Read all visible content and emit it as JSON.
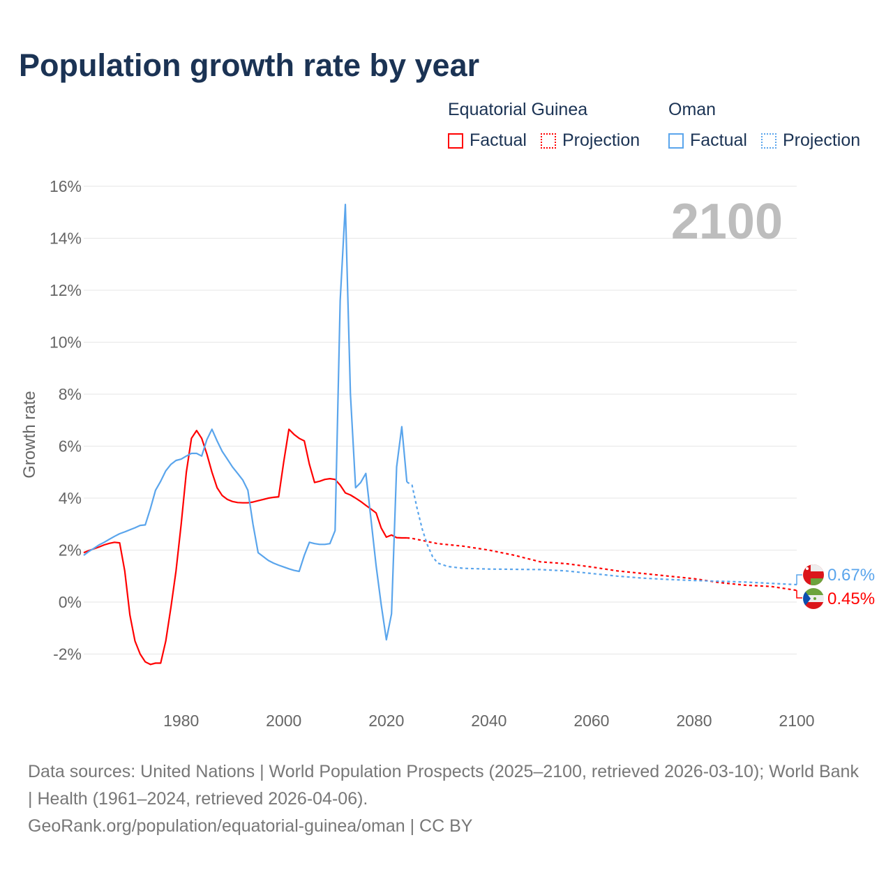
{
  "title": "Population growth rate by year",
  "legend": {
    "groups": [
      {
        "name": "Equatorial Guinea",
        "factual": "Factual",
        "projection": "Projection",
        "color": "#ff0000"
      },
      {
        "name": "Oman",
        "factual": "Factual",
        "projection": "Projection",
        "color": "#5aa5ec"
      }
    ]
  },
  "year_watermark": "2100",
  "end_labels": {
    "oman": "0.67%",
    "equatorial_guinea": "0.45%"
  },
  "footer": {
    "line1": "Data sources: United Nations | World Population Prospects (2025–2100, retrieved 2026-03-10); World Bank | Health (1961–2024, retrieved 2026-04-06).",
    "line2": "GeoRank.org/population/equatorial-guinea/oman | CC BY"
  },
  "chart_data": {
    "type": "line",
    "title": "Population growth rate by year",
    "xlabel": "",
    "ylabel": "Growth rate",
    "xlim": [
      1961,
      2100
    ],
    "ylim": [
      -3.3,
      16
    ],
    "xticks": [
      1980,
      2000,
      2020,
      2040,
      2060,
      2080,
      2100
    ],
    "yticks": [
      -2,
      0,
      2,
      4,
      6,
      8,
      10,
      12,
      14,
      16
    ],
    "ytick_labels": [
      "-2%",
      "0%",
      "2%",
      "4%",
      "6%",
      "8%",
      "10%",
      "12%",
      "14%",
      "16%"
    ],
    "grid": true,
    "legend_position": "top-right",
    "series": [
      {
        "name": "Equatorial Guinea — Factual",
        "color": "#ff0000",
        "style": "solid",
        "x": [
          1961,
          1962,
          1963,
          1964,
          1965,
          1966,
          1967,
          1968,
          1969,
          1970,
          1971,
          1972,
          1973,
          1974,
          1975,
          1976,
          1977,
          1978,
          1979,
          1980,
          1981,
          1982,
          1983,
          1984,
          1985,
          1986,
          1987,
          1988,
          1989,
          1990,
          1991,
          1992,
          1993,
          1994,
          1995,
          1996,
          1997,
          1998,
          1999,
          2000,
          2001,
          2002,
          2003,
          2004,
          2005,
          2006,
          2007,
          2008,
          2009,
          2010,
          2011,
          2012,
          2013,
          2014,
          2015,
          2016,
          2017,
          2018,
          2019,
          2020,
          2021,
          2022,
          2023,
          2024
        ],
        "y": [
          1.9,
          1.98,
          2.05,
          2.12,
          2.2,
          2.26,
          2.3,
          2.28,
          1.2,
          -0.5,
          -1.5,
          -2.0,
          -2.3,
          -2.4,
          -2.35,
          -2.35,
          -1.5,
          -0.2,
          1.2,
          3.0,
          5.0,
          6.3,
          6.6,
          6.3,
          5.7,
          5.0,
          4.4,
          4.1,
          3.95,
          3.87,
          3.83,
          3.82,
          3.82,
          3.85,
          3.9,
          3.95,
          4.0,
          4.03,
          4.05,
          5.4,
          6.65,
          6.45,
          6.3,
          6.2,
          5.3,
          4.6,
          4.65,
          4.72,
          4.75,
          4.72,
          4.5,
          4.2,
          4.12,
          4.0,
          3.87,
          3.72,
          3.58,
          3.43,
          2.85,
          2.5,
          2.58,
          2.48,
          2.47,
          2.47
        ]
      },
      {
        "name": "Equatorial Guinea — Projection",
        "color": "#ff0000",
        "style": "dotted",
        "x": [
          2024,
          2025,
          2030,
          2035,
          2040,
          2045,
          2050,
          2055,
          2060,
          2065,
          2070,
          2075,
          2080,
          2085,
          2090,
          2095,
          2100
        ],
        "y": [
          2.47,
          2.45,
          2.25,
          2.15,
          2.0,
          1.8,
          1.55,
          1.48,
          1.35,
          1.2,
          1.1,
          1.0,
          0.9,
          0.75,
          0.65,
          0.6,
          0.45
        ]
      },
      {
        "name": "Oman — Factual",
        "color": "#5aa5ec",
        "style": "solid",
        "x": [
          1961,
          1962,
          1963,
          1964,
          1965,
          1966,
          1967,
          1968,
          1969,
          1970,
          1971,
          1972,
          1973,
          1974,
          1975,
          1976,
          1977,
          1978,
          1979,
          1980,
          1981,
          1982,
          1983,
          1984,
          1985,
          1986,
          1987,
          1988,
          1989,
          1990,
          1991,
          1992,
          1993,
          1994,
          1995,
          1996,
          1997,
          1998,
          1999,
          2000,
          2001,
          2002,
          2003,
          2004,
          2005,
          2006,
          2007,
          2008,
          2009,
          2010,
          2011,
          2012,
          2013,
          2014,
          2015,
          2016,
          2017,
          2018,
          2019,
          2020,
          2021,
          2022,
          2023,
          2024
        ],
        "y": [
          1.8,
          1.95,
          2.07,
          2.2,
          2.3,
          2.42,
          2.53,
          2.63,
          2.7,
          2.78,
          2.86,
          2.95,
          2.97,
          3.6,
          4.3,
          4.65,
          5.05,
          5.3,
          5.45,
          5.5,
          5.62,
          5.72,
          5.72,
          5.62,
          6.25,
          6.65,
          6.2,
          5.8,
          5.5,
          5.2,
          4.95,
          4.7,
          4.3,
          3.0,
          1.9,
          1.75,
          1.6,
          1.5,
          1.42,
          1.35,
          1.28,
          1.22,
          1.18,
          1.8,
          2.3,
          2.25,
          2.22,
          2.22,
          2.25,
          2.75,
          11.6,
          15.3,
          8.0,
          4.4,
          4.6,
          4.95,
          3.2,
          1.4,
          -0.1,
          -1.45,
          -0.45,
          5.2,
          6.75,
          4.62
        ]
      },
      {
        "name": "Oman — Projection",
        "color": "#5aa5ec",
        "style": "dotted",
        "x": [
          2024,
          2025,
          2026,
          2027,
          2028,
          2029,
          2030,
          2032,
          2035,
          2040,
          2050,
          2055,
          2060,
          2065,
          2070,
          2075,
          2080,
          2085,
          2090,
          2095,
          2100
        ],
        "y": [
          4.62,
          4.5,
          3.6,
          2.8,
          2.2,
          1.75,
          1.5,
          1.37,
          1.3,
          1.27,
          1.25,
          1.2,
          1.1,
          1.0,
          0.92,
          0.87,
          0.83,
          0.8,
          0.77,
          0.72,
          0.67
        ]
      }
    ]
  }
}
